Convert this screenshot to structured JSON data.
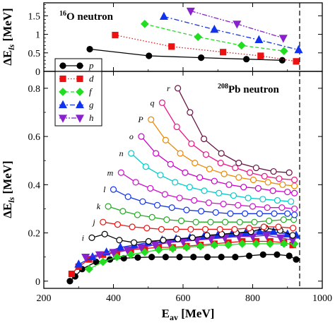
{
  "figure": {
    "x_axis_label": "E_av [MeV]",
    "x_axis_label_main": "E",
    "x_axis_label_sub": "av",
    "x_axis_label_unit": " [MeV]",
    "y_axis_label_main": "ΔE",
    "y_axis_label_sub": "ls",
    "y_axis_label_unit": " [MeV]",
    "dashed_line_x": 935
  },
  "chart_data": [
    {
      "type": "line",
      "panel": "top",
      "title": "16O neutron",
      "title_sup": "16",
      "title_main": "O neutron",
      "xlim": [
        200,
        1000
      ],
      "ylim": [
        0,
        1.85
      ],
      "yticks": [
        0,
        0.5,
        1,
        1.5
      ],
      "ytick_labels": [
        "0",
        "0.5",
        "1",
        "1.5"
      ],
      "legend": {
        "placement": "bottom-left",
        "entries": [
          "p",
          "d",
          "f",
          "g",
          "h"
        ]
      },
      "series": [
        {
          "name": "p",
          "color": "#000000",
          "marker": "circle",
          "line": "solid",
          "x": [
            332,
            502,
            652,
            782,
            885
          ],
          "y": [
            0.6,
            0.42,
            0.37,
            0.33,
            0.3
          ]
        },
        {
          "name": "d",
          "color": "#ee1111",
          "marker": "square",
          "line": "dotted",
          "x": [
            405,
            567,
            715,
            823,
            925
          ],
          "y": [
            0.98,
            0.67,
            0.52,
            0.42,
            0.27
          ]
        },
        {
          "name": "f",
          "color": "#22dd22",
          "marker": "diamond",
          "line": "dashed",
          "x": [
            490,
            643,
            768,
            890
          ],
          "y": [
            1.28,
            0.93,
            0.7,
            0.55
          ]
        },
        {
          "name": "g",
          "color": "#1133ee",
          "marker": "triangle-up",
          "line": "dashdot",
          "x": [
            545,
            690,
            818,
            932
          ],
          "y": [
            1.48,
            1.13,
            0.85,
            0.58
          ]
        },
        {
          "name": "h",
          "color": "#8822cc",
          "marker": "triangle-down",
          "line": "dashdotdot",
          "x": [
            622,
            755,
            888
          ],
          "y": [
            1.63,
            1.28,
            0.9
          ]
        }
      ]
    },
    {
      "type": "line",
      "panel": "bottom",
      "title": "208Pb neutron",
      "title_sup": "208",
      "title_main": "Pb neutron",
      "xlim": [
        200,
        1000
      ],
      "ylim": [
        -0.03,
        0.87
      ],
      "xticks": [
        200,
        400,
        600,
        800,
        1000
      ],
      "xtick_labels": [
        "200",
        "400",
        "600",
        "800",
        "1000"
      ],
      "yticks": [
        0,
        0.2,
        0.4,
        0.6,
        0.8
      ],
      "ytick_labels": [
        "0",
        "0.2",
        "0.4",
        "0.6",
        "0.8"
      ],
      "series": [
        {
          "name": "p",
          "color": "#000000",
          "marker": "circle",
          "filled": true,
          "x": [
            275,
            290,
            310,
            350,
            390,
            430,
            470,
            510,
            550,
            590,
            630,
            670,
            710,
            750,
            790,
            830,
            870,
            905,
            925
          ],
          "y": [
            0.0,
            0.02,
            0.05,
            0.08,
            0.09,
            0.095,
            0.098,
            0.1,
            0.1,
            0.1,
            0.1,
            0.1,
            0.1,
            0.1,
            0.105,
            0.11,
            0.11,
            0.105,
            0.09
          ]
        },
        {
          "name": "d",
          "color": "#ee1111",
          "marker": "square",
          "filled": true,
          "x": [
            280,
            300,
            330,
            370,
            410,
            450,
            490,
            530,
            570,
            610,
            650,
            690,
            730,
            770,
            810,
            850,
            890,
            915
          ],
          "y": [
            0.03,
            0.06,
            0.09,
            0.11,
            0.12,
            0.13,
            0.135,
            0.14,
            0.14,
            0.145,
            0.15,
            0.155,
            0.16,
            0.165,
            0.165,
            0.165,
            0.16,
            0.15
          ]
        },
        {
          "name": "f",
          "color": "#22dd22",
          "marker": "diamond",
          "filled": true,
          "x": [
            330,
            370,
            410,
            450,
            490,
            530,
            570,
            610,
            650,
            690,
            730,
            770,
            810,
            850,
            890,
            920
          ],
          "y": [
            0.05,
            0.08,
            0.1,
            0.11,
            0.12,
            0.13,
            0.135,
            0.14,
            0.145,
            0.15,
            0.15,
            0.155,
            0.155,
            0.155,
            0.155,
            0.155
          ]
        },
        {
          "name": "g",
          "color": "#1133ee",
          "marker": "triangle-up",
          "filled": true,
          "x": [
            300,
            340,
            380,
            420,
            460,
            500,
            540,
            580,
            620,
            660,
            700,
            740,
            780,
            820,
            860,
            900,
            925
          ],
          "y": [
            0.07,
            0.1,
            0.12,
            0.14,
            0.15,
            0.16,
            0.17,
            0.175,
            0.18,
            0.185,
            0.19,
            0.195,
            0.2,
            0.205,
            0.205,
            0.195,
            0.19
          ]
        },
        {
          "name": "h",
          "color": "#8822cc",
          "marker": "triangle-down",
          "filled": true,
          "x": [
            320,
            360,
            400,
            440,
            480,
            520,
            560,
            600,
            640,
            680,
            720,
            760,
            800,
            840,
            880,
            915
          ],
          "y": [
            0.1,
            0.11,
            0.12,
            0.13,
            0.14,
            0.15,
            0.16,
            0.165,
            0.17,
            0.175,
            0.18,
            0.185,
            0.185,
            0.19,
            0.18,
            0.17
          ]
        },
        {
          "name": "i",
          "color": "#000000",
          "marker": "circle",
          "filled": false,
          "x": [
            338,
            375,
            417,
            459,
            501,
            543,
            585,
            627,
            669,
            711,
            753,
            795,
            837,
            879,
            915
          ],
          "y": [
            0.18,
            0.195,
            0.17,
            0.16,
            0.165,
            0.17,
            0.175,
            0.18,
            0.19,
            0.195,
            0.2,
            0.205,
            0.22,
            0.21,
            0.19
          ]
        },
        {
          "name": "j",
          "color": "#ee1111",
          "marker": "circle",
          "filled": false,
          "x": [
            370,
            412,
            454,
            496,
            538,
            580,
            622,
            664,
            706,
            748,
            790,
            832,
            874,
            916
          ],
          "y": [
            0.245,
            0.235,
            0.225,
            0.22,
            0.215,
            0.215,
            0.215,
            0.215,
            0.215,
            0.215,
            0.22,
            0.225,
            0.225,
            0.22
          ]
        },
        {
          "name": "k",
          "color": "#22aa22",
          "marker": "circle",
          "filled": false,
          "x": [
            385,
            427,
            469,
            511,
            553,
            595,
            637,
            679,
            721,
            763,
            805,
            847,
            889,
            918
          ],
          "y": [
            0.31,
            0.29,
            0.275,
            0.265,
            0.255,
            0.25,
            0.245,
            0.245,
            0.245,
            0.245,
            0.245,
            0.25,
            0.255,
            0.255
          ]
        },
        {
          "name": "l",
          "color": "#1133ee",
          "marker": "circle",
          "filled": false,
          "x": [
            400,
            442,
            484,
            526,
            568,
            610,
            652,
            694,
            736,
            778,
            820,
            862,
            900,
            920
          ],
          "y": [
            0.38,
            0.35,
            0.33,
            0.315,
            0.305,
            0.295,
            0.29,
            0.285,
            0.28,
            0.28,
            0.28,
            0.28,
            0.28,
            0.275
          ]
        },
        {
          "name": "m",
          "color": "#cc11cc",
          "marker": "circle",
          "filled": false,
          "x": [
            422,
            464,
            506,
            548,
            590,
            632,
            674,
            716,
            758,
            800,
            842,
            884,
            920
          ],
          "y": [
            0.45,
            0.41,
            0.385,
            0.36,
            0.345,
            0.335,
            0.325,
            0.32,
            0.315,
            0.31,
            0.305,
            0.305,
            0.3
          ]
        },
        {
          "name": "n",
          "color": "#00cccc",
          "marker": "circle",
          "filled": false,
          "x": [
            451,
            493,
            535,
            577,
            619,
            661,
            703,
            745,
            787,
            829,
            871,
            910
          ],
          "y": [
            0.53,
            0.475,
            0.44,
            0.41,
            0.39,
            0.375,
            0.365,
            0.355,
            0.345,
            0.34,
            0.335,
            0.33
          ]
        },
        {
          "name": "o",
          "color": "#cc00cc",
          "marker": "circle",
          "filled": false,
          "x": [
            480,
            522,
            564,
            606,
            648,
            690,
            732,
            774,
            816,
            858,
            900,
            920
          ],
          "y": [
            0.6,
            0.53,
            0.485,
            0.45,
            0.43,
            0.415,
            0.4,
            0.39,
            0.385,
            0.375,
            0.37,
            0.365
          ]
        },
        {
          "name": "P",
          "color": "#ee8800",
          "marker": "circle",
          "filled": false,
          "x": [
            508,
            550,
            592,
            634,
            676,
            718,
            760,
            802,
            844,
            886,
            920
          ],
          "y": [
            0.67,
            0.585,
            0.53,
            0.49,
            0.465,
            0.445,
            0.43,
            0.42,
            0.41,
            0.4,
            0.395
          ]
        },
        {
          "name": "q",
          "color": "#ee1188",
          "marker": "circle",
          "filled": false,
          "x": [
            540,
            582,
            624,
            666,
            708,
            750,
            792,
            834,
            876,
            920
          ],
          "y": [
            0.74,
            0.64,
            0.57,
            0.525,
            0.49,
            0.47,
            0.45,
            0.435,
            0.425,
            0.42
          ]
        },
        {
          "name": "r",
          "color": "#661144",
          "marker": "circle",
          "filled": false,
          "x": [
            585,
            620,
            660,
            710,
            760,
            810,
            860,
            905
          ],
          "y": [
            0.8,
            0.7,
            0.59,
            0.53,
            0.49,
            0.47,
            0.455,
            0.45
          ]
        }
      ]
    }
  ]
}
